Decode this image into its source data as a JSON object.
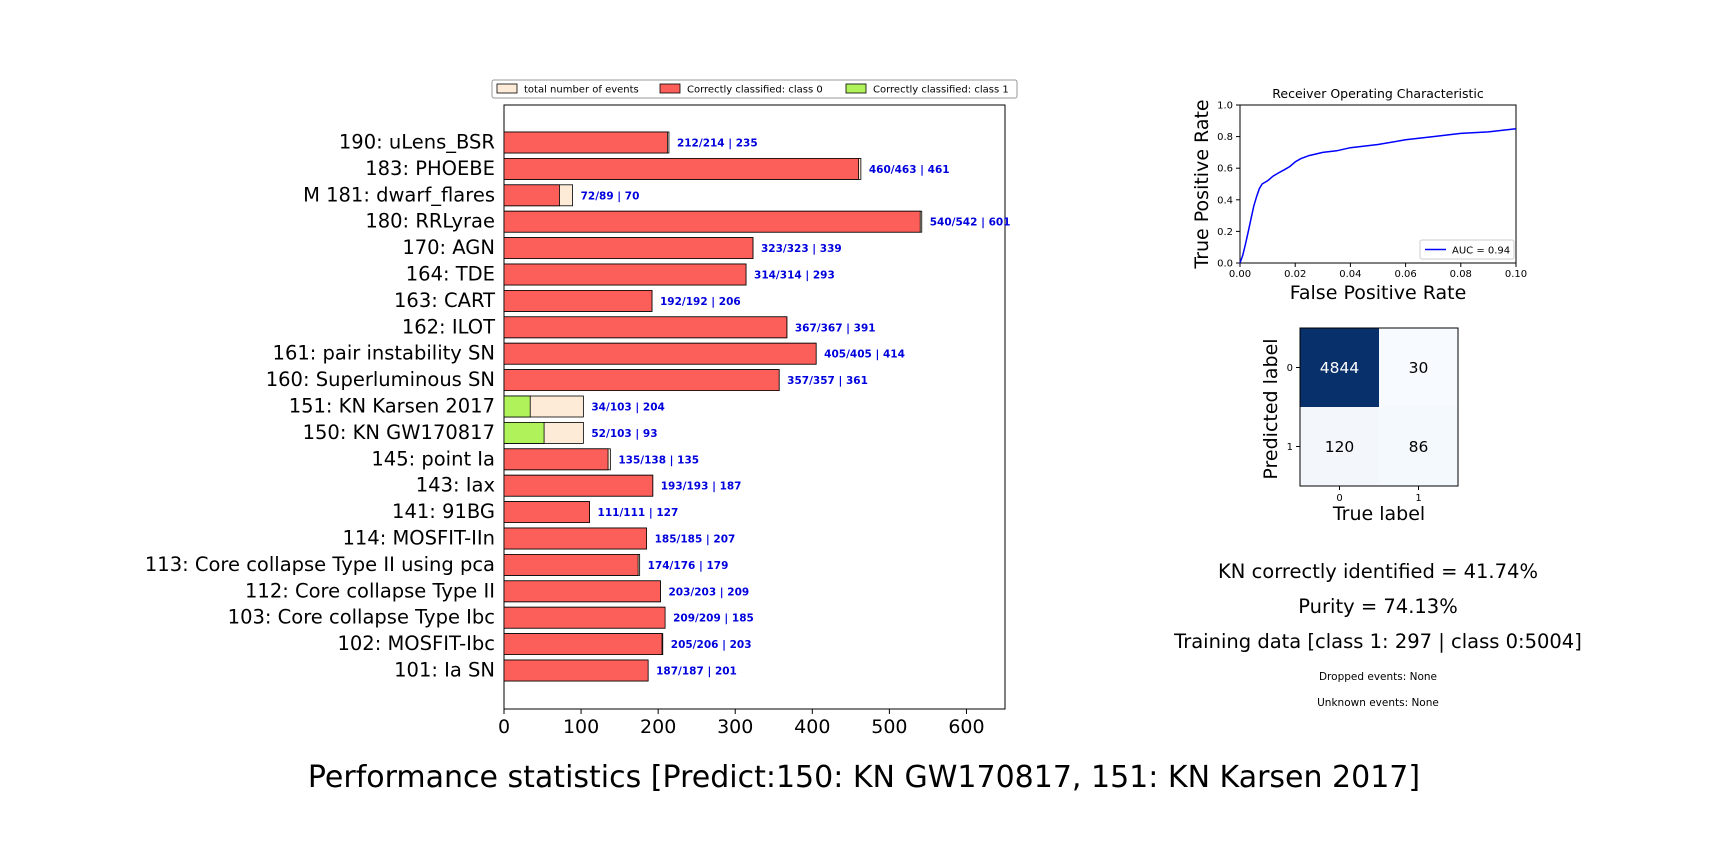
{
  "title": "Performance statistics [Predict:150: KN GW170817, 151: KN Karsen 2017]",
  "colors": {
    "total": "#fdebd7",
    "class0": "#fc5f5a",
    "class1": "#b0f25a",
    "annotation": "#0000dd",
    "roc_line": "#0000ff",
    "cm_dark": "#08306b",
    "cm_light": "#f7fbff"
  },
  "bar_chart": {
    "legend": [
      "total number of events",
      "Correctly classified: class 0",
      "Correctly classified: class 1"
    ],
    "xticks": [
      "0",
      "100",
      "200",
      "300",
      "400",
      "500",
      "600"
    ],
    "xlim": [
      0,
      650
    ]
  },
  "stats": {
    "kn_identified": "KN correctly identified = 41.74%",
    "purity": "Purity = 74.13%",
    "training": "Training data [class 1: 297 | class 0:5004]",
    "dropped": "Dropped events: None",
    "unknown": "Unknown events: None"
  },
  "chart_data": [
    {
      "type": "bar",
      "orientation": "horizontal",
      "categories": [
        "190: uLens_BSR",
        "183: PHOEBE",
        "M 181: dwarf_flares",
        "180: RRLyrae",
        "170: AGN",
        "164: TDE",
        "163: CART",
        "162: ILOT",
        "161: pair instability SN",
        "160: Superluminous SN",
        "151: KN Karsen 2017",
        "150: KN GW170817",
        "145: point Ia",
        "143: Iax",
        "141: 91BG",
        "114: MOSFIT-IIn",
        "113: Core collapse Type II using pca ",
        "112: Core collapse Type II",
        "103: Core collapse Type Ibc",
        "102: MOSFIT-Ibc",
        "101: Ia SN"
      ],
      "series": [
        {
          "name": "total number of events",
          "values": [
            214,
            463,
            89,
            542,
            323,
            314,
            192,
            367,
            405,
            357,
            103,
            103,
            138,
            193,
            111,
            185,
            176,
            203,
            209,
            206,
            187
          ]
        },
        {
          "name": "Correctly classified: class 0",
          "values": [
            212,
            460,
            72,
            540,
            323,
            314,
            192,
            367,
            405,
            357,
            0,
            0,
            135,
            193,
            111,
            185,
            174,
            203,
            209,
            205,
            187
          ]
        },
        {
          "name": "Correctly classified: class 1",
          "values": [
            0,
            0,
            0,
            0,
            0,
            0,
            0,
            0,
            0,
            0,
            34,
            52,
            0,
            0,
            0,
            0,
            0,
            0,
            0,
            0,
            0
          ]
        }
      ],
      "labels": [
        "212/214 | 235",
        "460/463 | 461",
        "72/89 | 70",
        "540/542 | 601",
        "323/323 | 339",
        "314/314 | 293",
        "192/192 | 206",
        "367/367 | 391",
        "405/405 | 414",
        "357/357 | 361",
        "34/103 | 204",
        "52/103 | 93",
        "135/138 | 135",
        "193/193 | 187",
        "111/111 | 127",
        "185/185 | 207",
        "174/176 | 179",
        "203/203 | 209",
        "209/209 | 185",
        "205/206 | 203",
        "187/187 | 201"
      ],
      "xlim": [
        0,
        650
      ],
      "legend_position": "top"
    },
    {
      "type": "line",
      "title": "Receiver Operating Characteristic",
      "xlabel": "False Positive Rate",
      "ylabel": "True Positive Rate",
      "xlim": [
        0,
        0.1
      ],
      "ylim": [
        0,
        1.0
      ],
      "xticks": [
        "0.00",
        "0.02",
        "0.04",
        "0.06",
        "0.08",
        "0.10"
      ],
      "yticks": [
        "0.0",
        "0.2",
        "0.4",
        "0.6",
        "0.8",
        "1.0"
      ],
      "legend_position": "bottom-right",
      "series": [
        {
          "name": "AUC = 0.94",
          "x": [
            0,
            0.001,
            0.002,
            0.003,
            0.004,
            0.005,
            0.006,
            0.007,
            0.008,
            0.01,
            0.012,
            0.014,
            0.016,
            0.018,
            0.02,
            0.022,
            0.025,
            0.03,
            0.035,
            0.04,
            0.05,
            0.06,
            0.07,
            0.08,
            0.09,
            0.1
          ],
          "y": [
            0.0,
            0.05,
            0.12,
            0.2,
            0.28,
            0.36,
            0.42,
            0.47,
            0.5,
            0.52,
            0.55,
            0.57,
            0.59,
            0.61,
            0.64,
            0.66,
            0.68,
            0.7,
            0.71,
            0.73,
            0.75,
            0.78,
            0.8,
            0.82,
            0.83,
            0.85
          ]
        }
      ]
    },
    {
      "type": "heatmap",
      "xlabel": "True label",
      "ylabel": "Predicted label",
      "xticks": [
        "0",
        "1"
      ],
      "yticks": [
        "0",
        "1"
      ],
      "matrix": [
        [
          4844,
          30
        ],
        [
          120,
          86
        ]
      ]
    }
  ]
}
